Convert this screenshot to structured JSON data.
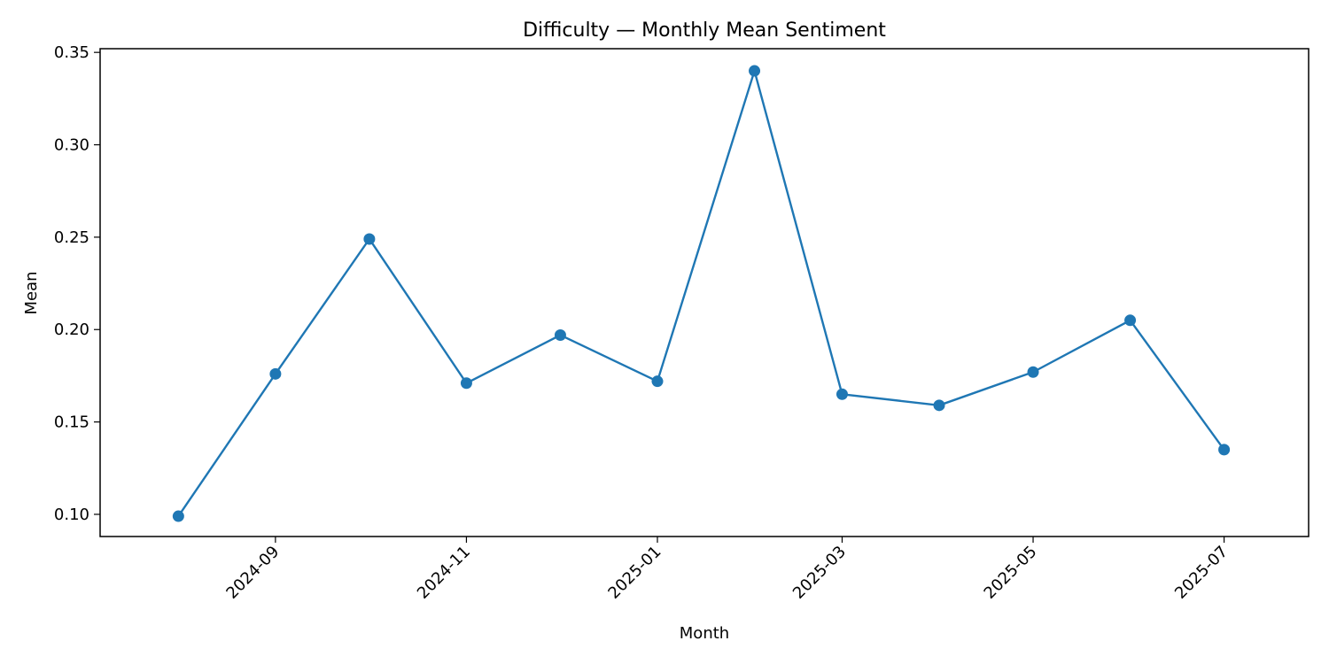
{
  "chart_data": {
    "type": "line",
    "title": "Difficulty — Monthly Mean Sentiment",
    "xlabel": "Month",
    "ylabel": "Mean",
    "x": [
      "2024-08",
      "2024-09",
      "2024-10",
      "2024-11",
      "2024-12",
      "2025-01",
      "2025-02",
      "2025-03",
      "2025-04",
      "2025-05",
      "2025-06",
      "2025-07"
    ],
    "series": [
      {
        "values": [
          0.099,
          0.176,
          0.249,
          0.171,
          0.197,
          0.172,
          0.34,
          0.165,
          0.159,
          0.177,
          0.205,
          0.135
        ],
        "color": "#1f77b4",
        "marker": "circle"
      }
    ],
    "x_ticks": [
      "2024-09",
      "2024-11",
      "2025-01",
      "2025-03",
      "2025-05",
      "2025-07"
    ],
    "y_ticks": [
      "0.10",
      "0.15",
      "0.20",
      "0.25",
      "0.30",
      "0.35"
    ],
    "ylim": [
      0.088,
      0.352
    ],
    "xlim": [
      "2024-07-07",
      "2025-07-28"
    ],
    "grid": false,
    "legend": "none"
  }
}
